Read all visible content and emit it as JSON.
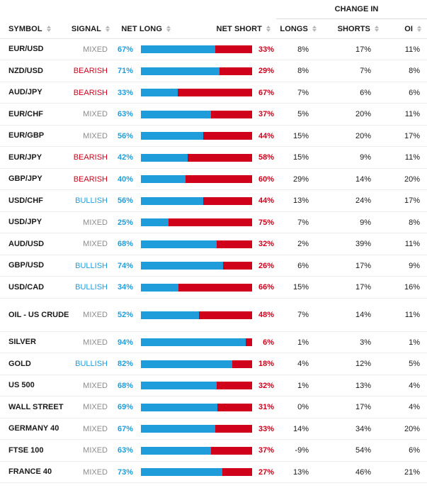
{
  "header": {
    "change_group": "CHANGE IN",
    "symbol": "SYMBOL",
    "signal": "SIGNAL",
    "net_long": "NET LONG",
    "net_short": "NET SHORT",
    "longs": "LONGS",
    "shorts": "SHORTS",
    "oi": "OI"
  },
  "colors": {
    "long": "#1f9ddb",
    "short": "#d0021b",
    "mixed": "#8c8c8c"
  },
  "rows": [
    {
      "symbol": "EUR/USD",
      "signal": "MIXED",
      "net_long": "67%",
      "net_short": "33%",
      "long_pct": 67,
      "longs": "8%",
      "shorts": "17%",
      "oi": "11%"
    },
    {
      "symbol": "NZD/USD",
      "signal": "BEARISH",
      "net_long": "71%",
      "net_short": "29%",
      "long_pct": 71,
      "longs": "8%",
      "shorts": "7%",
      "oi": "8%"
    },
    {
      "symbol": "AUD/JPY",
      "signal": "BEARISH",
      "net_long": "33%",
      "net_short": "67%",
      "long_pct": 33,
      "longs": "7%",
      "shorts": "6%",
      "oi": "6%"
    },
    {
      "symbol": "EUR/CHF",
      "signal": "MIXED",
      "net_long": "63%",
      "net_short": "37%",
      "long_pct": 63,
      "longs": "5%",
      "shorts": "20%",
      "oi": "11%"
    },
    {
      "symbol": "EUR/GBP",
      "signal": "MIXED",
      "net_long": "56%",
      "net_short": "44%",
      "long_pct": 56,
      "longs": "15%",
      "shorts": "20%",
      "oi": "17%"
    },
    {
      "symbol": "EUR/JPY",
      "signal": "BEARISH",
      "net_long": "42%",
      "net_short": "58%",
      "long_pct": 42,
      "longs": "15%",
      "shorts": "9%",
      "oi": "11%"
    },
    {
      "symbol": "GBP/JPY",
      "signal": "BEARISH",
      "net_long": "40%",
      "net_short": "60%",
      "long_pct": 40,
      "longs": "29%",
      "shorts": "14%",
      "oi": "20%"
    },
    {
      "symbol": "USD/CHF",
      "signal": "BULLISH",
      "net_long": "56%",
      "net_short": "44%",
      "long_pct": 56,
      "longs": "13%",
      "shorts": "24%",
      "oi": "17%"
    },
    {
      "symbol": "USD/JPY",
      "signal": "MIXED",
      "net_long": "25%",
      "net_short": "75%",
      "long_pct": 25,
      "longs": "7%",
      "shorts": "9%",
      "oi": "8%"
    },
    {
      "symbol": "AUD/USD",
      "signal": "MIXED",
      "net_long": "68%",
      "net_short": "32%",
      "long_pct": 68,
      "longs": "2%",
      "shorts": "39%",
      "oi": "11%"
    },
    {
      "symbol": "GBP/USD",
      "signal": "BULLISH",
      "net_long": "74%",
      "net_short": "26%",
      "long_pct": 74,
      "longs": "6%",
      "shorts": "17%",
      "oi": "9%"
    },
    {
      "symbol": "USD/CAD",
      "signal": "BULLISH",
      "net_long": "34%",
      "net_short": "66%",
      "long_pct": 34,
      "longs": "15%",
      "shorts": "17%",
      "oi": "16%"
    },
    {
      "symbol": "OIL - US CRUDE",
      "signal": "MIXED",
      "net_long": "52%",
      "net_short": "48%",
      "long_pct": 52,
      "longs": "7%",
      "shorts": "14%",
      "oi": "11%"
    },
    {
      "symbol": "SILVER",
      "signal": "MIXED",
      "net_long": "94%",
      "net_short": "6%",
      "long_pct": 94,
      "longs": "1%",
      "shorts": "3%",
      "oi": "1%"
    },
    {
      "symbol": "GOLD",
      "signal": "BULLISH",
      "net_long": "82%",
      "net_short": "18%",
      "long_pct": 82,
      "longs": "4%",
      "shorts": "12%",
      "oi": "5%"
    },
    {
      "symbol": "US 500",
      "signal": "MIXED",
      "net_long": "68%",
      "net_short": "32%",
      "long_pct": 68,
      "longs": "1%",
      "shorts": "13%",
      "oi": "4%"
    },
    {
      "symbol": "WALL STREET",
      "signal": "MIXED",
      "net_long": "69%",
      "net_short": "31%",
      "long_pct": 69,
      "longs": "0%",
      "shorts": "17%",
      "oi": "4%"
    },
    {
      "symbol": "GERMANY 40",
      "signal": "MIXED",
      "net_long": "67%",
      "net_short": "33%",
      "long_pct": 67,
      "longs": "14%",
      "shorts": "34%",
      "oi": "20%"
    },
    {
      "symbol": "FTSE 100",
      "signal": "MIXED",
      "net_long": "63%",
      "net_short": "37%",
      "long_pct": 63,
      "longs": "-9%",
      "shorts": "54%",
      "oi": "6%"
    },
    {
      "symbol": "FRANCE 40",
      "signal": "MIXED",
      "net_long": "73%",
      "net_short": "27%",
      "long_pct": 73,
      "longs": "13%",
      "shorts": "46%",
      "oi": "21%"
    }
  ]
}
